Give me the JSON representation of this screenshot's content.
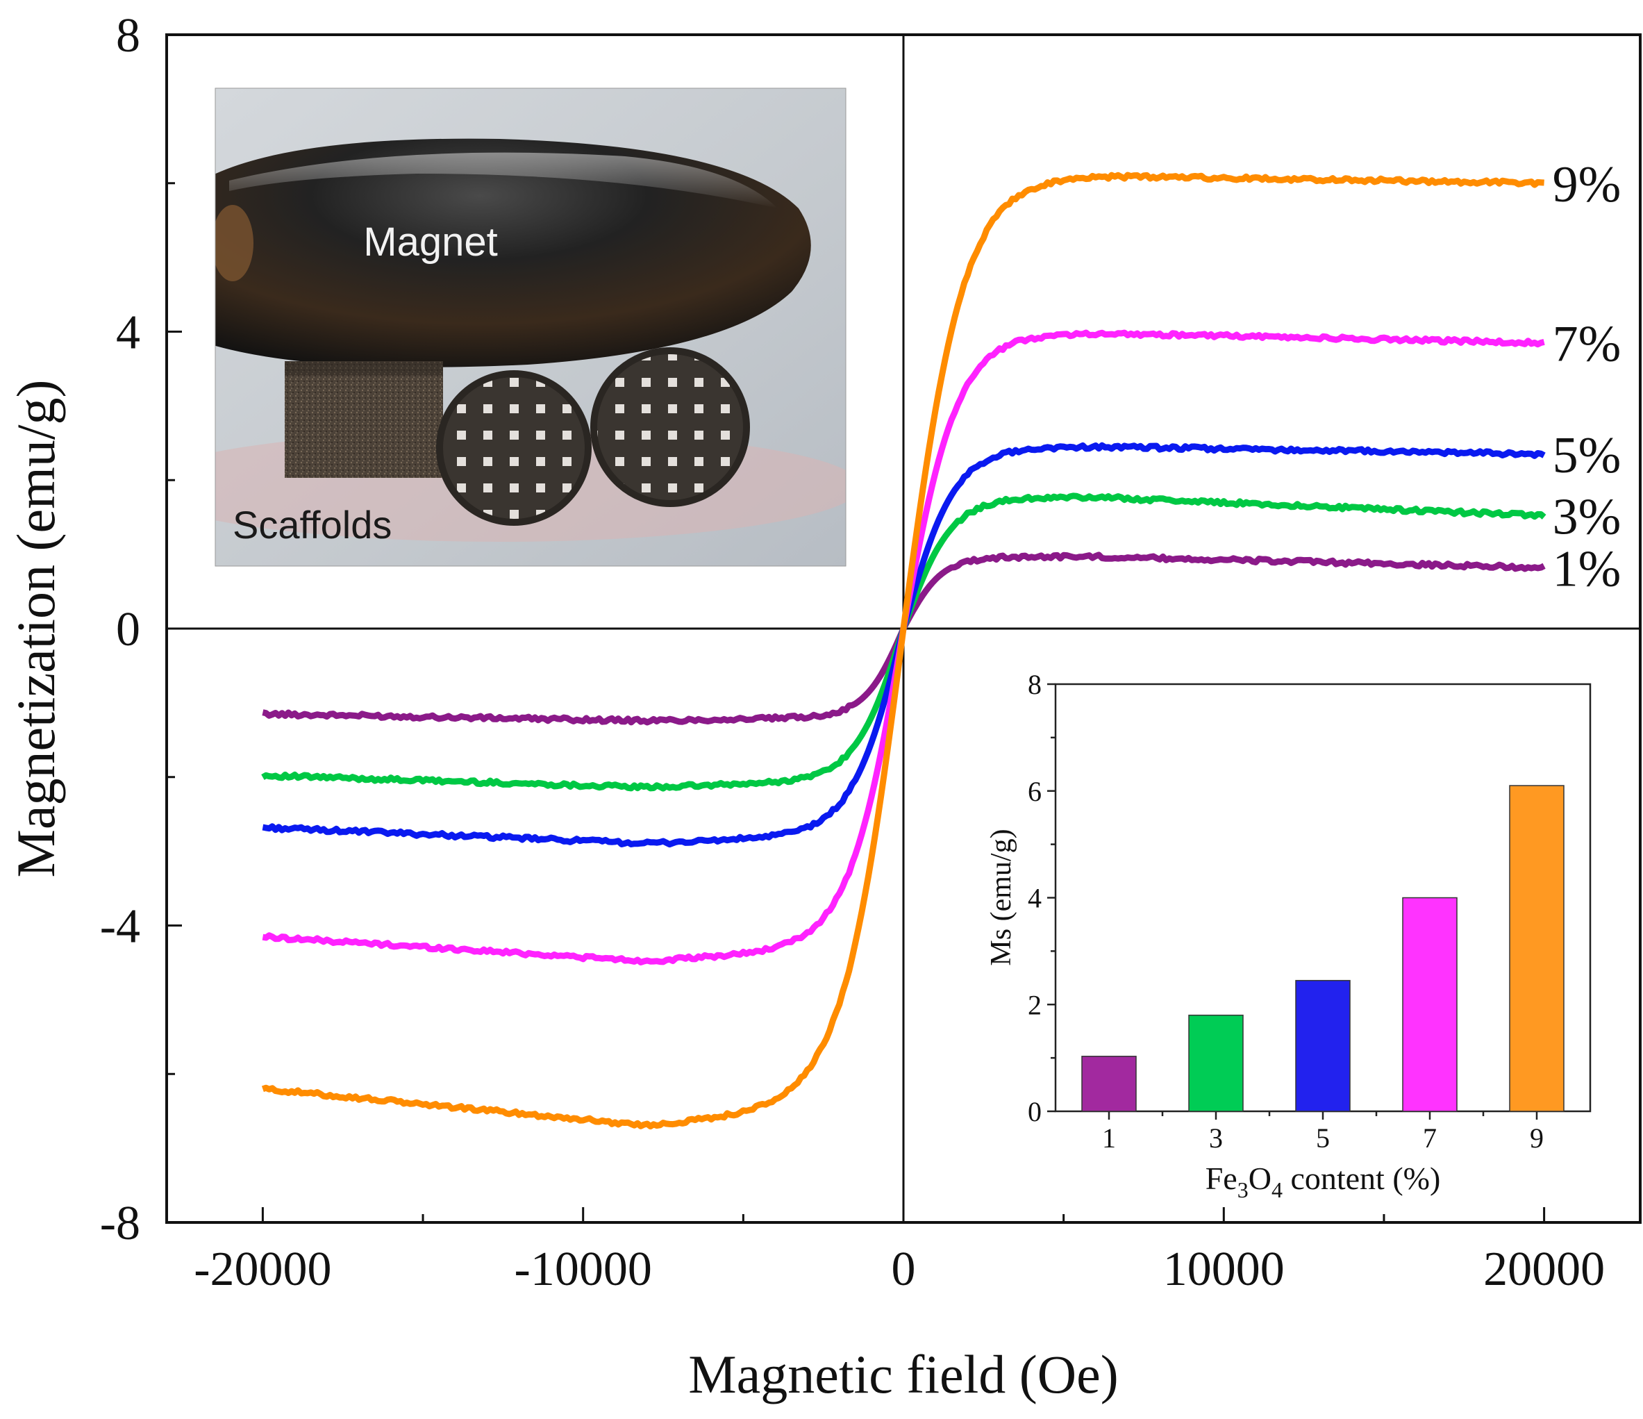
{
  "chart_data": [
    {
      "type": "line",
      "xlabel": "Magnetic field (Oe)",
      "ylabel": "Magnetization (emu/g)",
      "xlim": [
        -23000,
        23000
      ],
      "ylim": [
        -8,
        8
      ],
      "xticks": [
        -20000,
        -10000,
        0,
        10000,
        20000
      ],
      "yticks": [
        -8,
        -4,
        0,
        4,
        8
      ],
      "x_tick_labels": [
        "-20000",
        "-10000",
        "0",
        "10000",
        "20000"
      ],
      "y_tick_labels": [
        "-8",
        "-4",
        "0",
        "4",
        "8"
      ],
      "grid": false,
      "legend": "curve end labels at right",
      "series": [
        {
          "name": "1%",
          "color": "#8B1A89",
          "ms": 0.97,
          "m_end": 0.82,
          "m_neg": -1.15,
          "h_sat": 1200
        },
        {
          "name": "3%",
          "color": "#00C844",
          "ms": 1.77,
          "m_end": 1.52,
          "m_neg": -1.98,
          "h_sat": 1500
        },
        {
          "name": "5%",
          "color": "#0A1AF0",
          "ms": 2.45,
          "m_end": 2.35,
          "m_neg": -2.68,
          "h_sat": 1600
        },
        {
          "name": "7%",
          "color": "#FF22FF",
          "ms": 3.98,
          "m_end": 3.85,
          "m_neg": -4.15,
          "h_sat": 1700
        },
        {
          "name": "9%",
          "color": "#FF8C00",
          "ms": 6.1,
          "m_end": 6.0,
          "m_neg": -6.2,
          "h_sat": 1900
        }
      ]
    },
    {
      "type": "bar",
      "xlabel": "Fe3O4 content (%)",
      "ylabel": "Ms (emu/g)",
      "categories": [
        "1",
        "3",
        "5",
        "7",
        "9"
      ],
      "values": [
        1.03,
        1.8,
        2.45,
        4.0,
        6.1
      ],
      "colors": [
        "#A2299F",
        "#00CC55",
        "#2222EE",
        "#FF33FF",
        "#FF9922"
      ],
      "ylim": [
        0,
        8
      ],
      "yticks": [
        0,
        2,
        4,
        6,
        8
      ],
      "y_tick_labels": [
        "0",
        "2",
        "4",
        "6",
        "8"
      ]
    }
  ],
  "inset_photo": {
    "magnet_label": "Magnet",
    "scaffolds_label": "Scaffolds"
  }
}
